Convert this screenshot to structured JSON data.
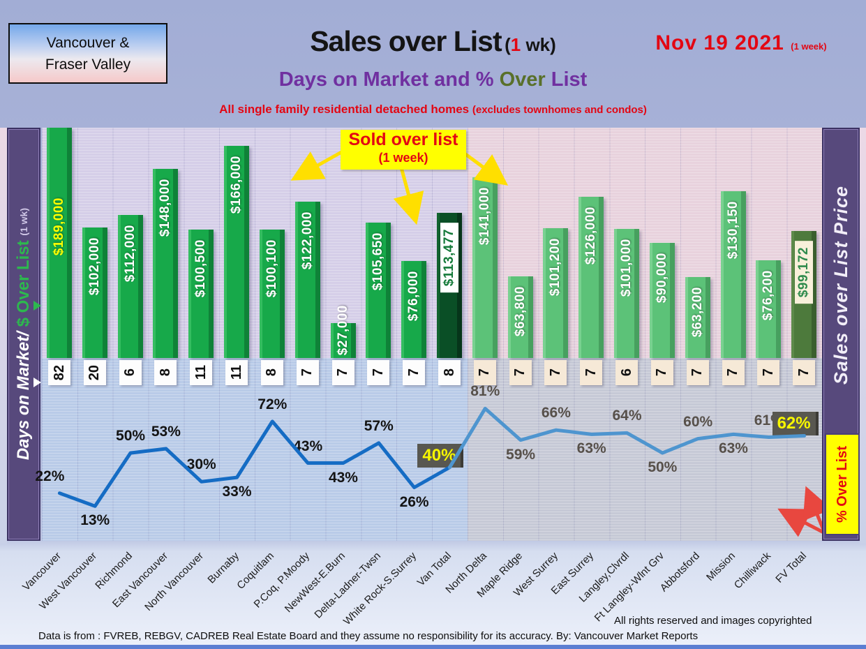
{
  "header": {
    "region_line1": "Vancouver &",
    "region_line2": "Fraser Valley",
    "title_main": "Sales over List",
    "title_paren_open": "(",
    "title_one": "1",
    "title_suffix": " wk)",
    "subtitle_part1": "Days on Market and % ",
    "subtitle_over": "Over",
    "subtitle_part2": " List",
    "tagline_main": "All single family residential detached homes ",
    "tagline_paren": "(excludes townhomes and condos)",
    "date_main": "Nov 19  2021",
    "date_paren": "(1 week)"
  },
  "left_axis": {
    "part1": "Days on Market/",
    "part2": "$ Over List",
    "part3": "(1 wk)"
  },
  "right_axis": {
    "label": "Sales over List Price",
    "pct_box": "% Over List"
  },
  "callout": {
    "line1": "Sold over list",
    "line2": "(1 week)"
  },
  "footer": {
    "rights": "All rights reserved and  images copyrighted",
    "source": "Data is from : FVREB, REBGV, CADREB Real Estate Board and they assume no responsibility for its accuracy. By: Vancouver Market Reports"
  },
  "colors": {
    "van_bar": "#17a94a",
    "van_bar_light": "#34bd60",
    "van_bar_dark": "#0f8238",
    "fv_bar": "#5cc278",
    "fv_bar_light": "#79d190",
    "fv_bar_dark": "#47a05f",
    "van_total_bar": "#0a4f26",
    "van_total_light": "#11632f",
    "van_total_dark": "#06351a",
    "fv_total_bar": "#4d7a3c",
    "fv_total_light": "#5d8a4a",
    "fv_total_dark": "#3a5f2e",
    "line_left": "#156cc4",
    "line_right": "#4e95cf",
    "day_box_van": "#fdfdfd",
    "day_box_fv": "#f6e9d7",
    "pct_label_left": "#141414",
    "pct_label_right": "#57504a",
    "arrow_yellow": "#ffdf00",
    "arrow_red": "#e8473f"
  },
  "chart_data": {
    "type": "bar+line",
    "title": "Sales over List (1 wk) — Days on Market and % Over List — Nov 19 2021",
    "categories": [
      "Vancouver",
      "West Vancouver",
      "Richmond",
      "East Vancouver",
      "North Vancouver",
      "Burnaby",
      "Coquitlam",
      "P.Coq, P.Moody",
      "NewWest-E.Burn",
      "Delta-Ladner-Twsn",
      "White Rock-S.Surrey",
      "Van Total",
      "North Delta",
      "Maple Ridge",
      "West Surrey",
      "East Surrey",
      "Langley,Clvrdl",
      "Ft Langley-Wlnt Grv",
      "Abbotsford",
      "Mission",
      "Chilliwack",
      "FV Total"
    ],
    "groups": {
      "vancouver_count": 12,
      "fraser_valley_count": 10
    },
    "ylim_bar": [
      0,
      180000
    ],
    "ylim_line": [
      0,
      100
    ],
    "grid": true,
    "series": [
      {
        "name": "$ Over List (bars)",
        "type": "bar",
        "values": [
          189000,
          102000,
          112000,
          148000,
          100500,
          166000,
          100100,
          122000,
          27000,
          105650,
          76000,
          113477,
          141000,
          63800,
          101200,
          126000,
          101000,
          90000,
          63200,
          130150,
          76200,
          99172
        ],
        "labels": [
          "$189,000",
          "$102,000",
          "$112,000",
          "$148,000",
          "$100,500",
          "$166,000",
          "$100,100",
          "$122,000",
          "$27,000",
          "$105,650",
          "$76,000",
          "$113,477",
          "$141,000",
          "$63,800",
          "$101,200",
          "$126,000",
          "$101,000",
          "$90,000",
          "$63,200",
          "$130,150",
          "$76,200",
          "$99,172"
        ]
      },
      {
        "name": "Days on Market",
        "type": "table",
        "values": [
          82,
          20,
          6,
          8,
          11,
          11,
          8,
          7,
          7,
          7,
          7,
          8,
          7,
          7,
          7,
          7,
          6,
          7,
          7,
          7,
          7,
          7
        ]
      },
      {
        "name": "% Over List (line)",
        "type": "line",
        "values": [
          22,
          13,
          50,
          53,
          30,
          33,
          72,
          43,
          43,
          57,
          26,
          40,
          81,
          59,
          66,
          63,
          64,
          50,
          60,
          63,
          61,
          62
        ],
        "labels": [
          "22%",
          "13%",
          "50%",
          "53%",
          "30%",
          "33%",
          "72%",
          "43%",
          "43%",
          "57%",
          "26%",
          "40%",
          "81%",
          "59%",
          "66%",
          "63%",
          "64%",
          "50%",
          "60%",
          "63%",
          "61%",
          "62%"
        ],
        "label_position": [
          "above",
          "below",
          "above",
          "above",
          "above",
          "below",
          "above",
          "above",
          "below",
          "above",
          "below",
          "box",
          "above",
          "below",
          "above",
          "below",
          "above",
          "below",
          "above",
          "below",
          "above",
          "box"
        ]
      }
    ]
  }
}
